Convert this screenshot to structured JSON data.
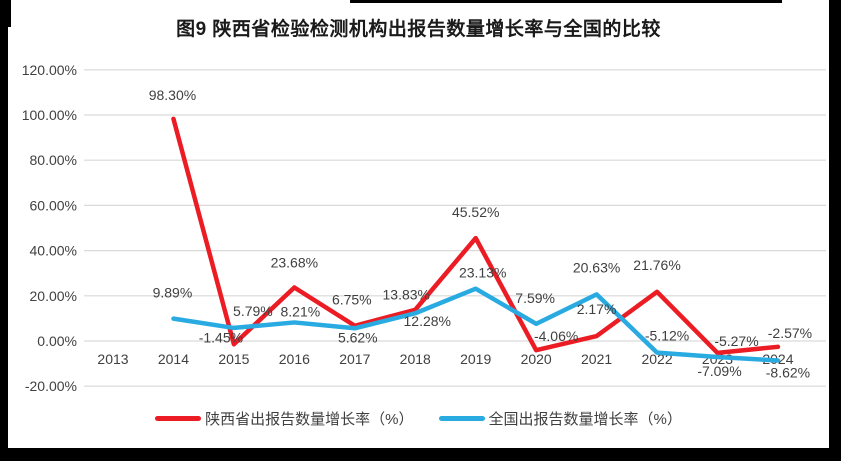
{
  "page": {
    "background_color": "#000000",
    "card_color": "#ffffff",
    "text_color": "#404040",
    "grid_color": "#d9d9d9"
  },
  "chart_data": {
    "type": "line",
    "title": "图9  陕西省检验检测机构出报告数量增长率与全国的比较",
    "categories": [
      "2013",
      "2014",
      "2015",
      "2016",
      "2017",
      "2018",
      "2019",
      "2020",
      "2021",
      "2022",
      "2023",
      "2024"
    ],
    "series": [
      {
        "name": "陕西省出报告数量增长率（%）",
        "color": "#ec1c24",
        "values": [
          null,
          98.3,
          -1.45,
          23.68,
          6.75,
          13.83,
          45.52,
          -4.06,
          2.17,
          21.76,
          -5.27,
          -2.57
        ],
        "labels": [
          null,
          "98.30%",
          "-1.45%",
          "23.68%",
          "6.75%",
          "13.83%",
          "45.52%",
          "-4.06%",
          "2.17%",
          "21.76%",
          "-5.27%",
          "-2.57%"
        ],
        "label_offsets": [
          null,
          [
            -1,
            -24
          ],
          [
            -13,
            -7
          ],
          [
            0,
            -25
          ],
          [
            -3,
            -26
          ],
          [
            -9,
            -15
          ],
          [
            0,
            -26
          ],
          [
            20,
            -14
          ],
          [
            0,
            -27
          ],
          [
            0,
            -27
          ],
          [
            19,
            -12
          ],
          [
            12,
            -14
          ]
        ]
      },
      {
        "name": "全国出报告数量增长率（%）",
        "color": "#29abe2",
        "values": [
          null,
          9.89,
          5.79,
          8.21,
          5.62,
          12.28,
          23.13,
          7.59,
          20.63,
          -5.12,
          -7.09,
          -8.62
        ],
        "labels": [
          null,
          "9.89%",
          "5.79%",
          "8.21%",
          "5.62%",
          "12.28%",
          "23.13%",
          "7.59%",
          "20.63%",
          "-5.12%",
          "-7.09%",
          "-8.62%"
        ],
        "label_offsets": [
          null,
          [
            -1,
            -26
          ],
          [
            19,
            -17
          ],
          [
            6,
            -11
          ],
          [
            3,
            9
          ],
          [
            12,
            8
          ],
          [
            7,
            -16
          ],
          [
            -1,
            -26
          ],
          [
            0,
            -27
          ],
          [
            10,
            -17
          ],
          [
            2,
            14
          ],
          [
            10,
            12
          ]
        ]
      }
    ],
    "y_axis": {
      "min": -20,
      "max": 120,
      "ticks": [
        {
          "label": "120.00%",
          "value": 120
        },
        {
          "label": "100.00%",
          "value": 100
        },
        {
          "label": "80.00%",
          "value": 80
        },
        {
          "label": "60.00%",
          "value": 60
        },
        {
          "label": "40.00%",
          "value": 40
        },
        {
          "label": "20.00%",
          "value": 20
        },
        {
          "label": "0.00%",
          "value": 0
        },
        {
          "label": "-20.00%",
          "value": -20
        }
      ]
    },
    "grid": true,
    "legend_position": "bottom",
    "xlabel": "",
    "ylabel": ""
  }
}
